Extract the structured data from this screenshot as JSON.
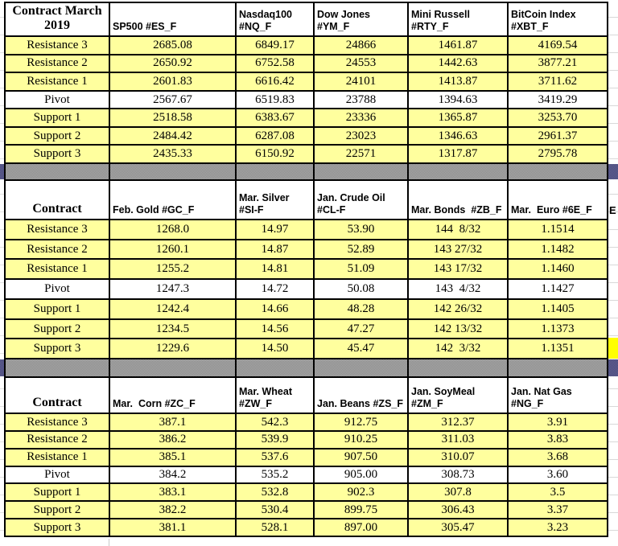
{
  "row_labels": [
    "Resistance 3",
    "Resistance 2",
    "Resistance 1",
    "Pivot",
    "Support 1",
    "Support 2",
    "Support 3"
  ],
  "tables": [
    {
      "name": "index-futures",
      "header": [
        "Contract March\n2019",
        "SP500 #ES_F",
        "Nasdaq100\n#NQ_F",
        "Dow Jones\n#YM_F",
        "Mini Russell\n#RTY_F",
        "BitCoin Index\n#XBT_F"
      ],
      "rows": [
        {
          "label": "Resistance 3",
          "bg": "yellow",
          "values": [
            "2685.08",
            "6849.17",
            "24866",
            "1461.87",
            "4169.54"
          ]
        },
        {
          "label": "Resistance 2",
          "bg": "yellow",
          "values": [
            "2650.92",
            "6752.58",
            "24553",
            "1442.63",
            "3877.21"
          ]
        },
        {
          "label": "Resistance 1",
          "bg": "yellow",
          "values": [
            "2601.83",
            "6616.42",
            "24101",
            "1413.87",
            "3711.62"
          ]
        },
        {
          "label": "Pivot",
          "bg": "white",
          "values": [
            "2567.67",
            "6519.83",
            "23788",
            "1394.63",
            "3419.29"
          ]
        },
        {
          "label": "Support 1",
          "bg": "yellow",
          "values": [
            "2518.58",
            "6383.67",
            "23336",
            "1365.87",
            "3253.70"
          ]
        },
        {
          "label": "Support 2",
          "bg": "yellow",
          "values": [
            "2484.42",
            "6287.08",
            "23023",
            "1346.63",
            "2961.37"
          ]
        },
        {
          "label": "Support 3",
          "bg": "yellow",
          "values": [
            "2435.33",
            "6150.92",
            "22571",
            "1317.87",
            "2795.78"
          ]
        }
      ]
    },
    {
      "name": "metals-energy-bonds-currency",
      "header": [
        "Contract",
        "Feb. Gold #GC_F",
        "Mar. Silver\n#SI-F",
        "Jan. Crude Oil\n#CL-F",
        "Mar. Bonds  #ZB_F",
        "Mar.  Euro #6E_F"
      ],
      "rows": [
        {
          "label": "Resistance 3",
          "bg": "yellow",
          "values": [
            "1268.0",
            "14.97",
            "53.90",
            "144  8/32",
            "1.1514"
          ]
        },
        {
          "label": "Resistance 2",
          "bg": "yellow",
          "values": [
            "1260.1",
            "14.87",
            "52.89",
            "143 27/32",
            "1.1482"
          ]
        },
        {
          "label": "Resistance 1",
          "bg": "yellow",
          "values": [
            "1255.2",
            "14.81",
            "51.09",
            "143 17/32",
            "1.1460"
          ]
        },
        {
          "label": "Pivot",
          "bg": "white",
          "values": [
            "1247.3",
            "14.72",
            "50.08",
            "143  4/32",
            "1.1427"
          ]
        },
        {
          "label": "Support 1",
          "bg": "yellow",
          "values": [
            "1242.4",
            "14.66",
            "48.28",
            "142 26/32",
            "1.1405"
          ]
        },
        {
          "label": "Support 2",
          "bg": "yellow",
          "values": [
            "1234.5",
            "14.56",
            "47.27",
            "142 13/32",
            "1.1373"
          ]
        },
        {
          "label": "Support 3",
          "bg": "yellow",
          "values": [
            "1229.6",
            "14.50",
            "45.47",
            "142  3/32",
            "1.1351"
          ]
        }
      ]
    },
    {
      "name": "grains-natgas",
      "header": [
        "Contract",
        "Mar.  Corn #ZC_F",
        "Mar. Wheat\n#ZW_F",
        "Jan. Beans #ZS_F",
        "Jan. SoyMeal\n#ZM_F",
        "Jan. Nat Gas\n#NG_F"
      ],
      "rows": [
        {
          "label": "Resistance 3",
          "bg": "yellow",
          "values": [
            "387.1",
            "542.3",
            "912.75",
            "312.37",
            "3.91"
          ]
        },
        {
          "label": "Resistance 2",
          "bg": "yellow",
          "values": [
            "386.2",
            "539.9",
            "910.25",
            "311.03",
            "3.83"
          ]
        },
        {
          "label": "Resistance 1",
          "bg": "yellow",
          "values": [
            "385.1",
            "537.6",
            "907.50",
            "310.07",
            "3.68"
          ]
        },
        {
          "label": "Pivot",
          "bg": "white",
          "values": [
            "384.2",
            "535.2",
            "905.00",
            "308.73",
            "3.60"
          ]
        },
        {
          "label": "Support 1",
          "bg": "yellow",
          "values": [
            "383.1",
            "532.8",
            "902.3",
            "307.8",
            "3.5"
          ]
        },
        {
          "label": "Support 2",
          "bg": "yellow",
          "values": [
            "382.2",
            "530.4",
            "899.75",
            "306.43",
            "3.37"
          ]
        },
        {
          "label": "Support 3",
          "bg": "yellow",
          "values": [
            "381.1",
            "528.1",
            "897.00",
            "305.47",
            "3.23"
          ]
        }
      ]
    }
  ],
  "edge": {
    "partial_header": "E"
  },
  "colors": {
    "cell_yellow": "#ffff9e",
    "highlight_yellow": "#ffff00",
    "band_gray": "#9b9b9b",
    "band_purple": "#555588",
    "border": "#000000",
    "gridline": "#d9d9d9"
  }
}
